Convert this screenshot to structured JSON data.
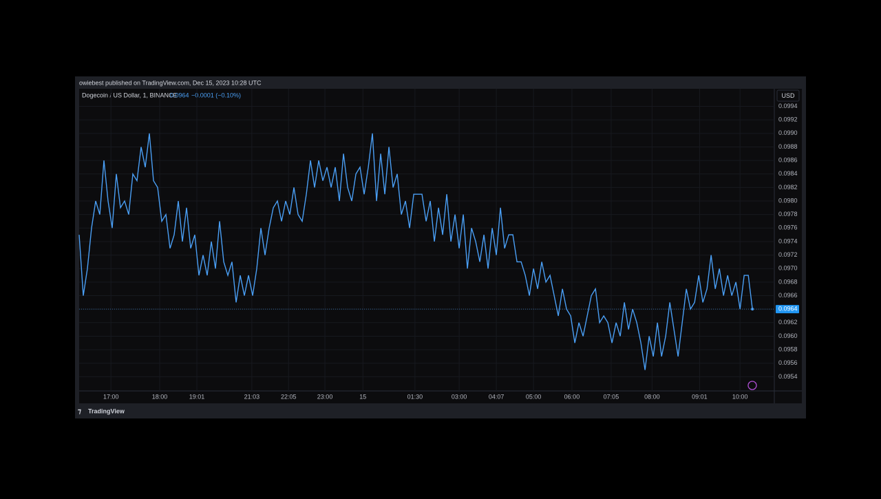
{
  "header": "owiebest published on TradingView.com, Dec 15, 2023 10:28 UTC",
  "footer": "TradingView",
  "chart_data": {
    "type": "line",
    "title": "Dogecoin / US Dollar, 1, BINANCE",
    "change": "−0.0001 (−0.10%)",
    "currency": "USD",
    "color": "#4a9ff5",
    "grid": true,
    "values": [
      0.0975,
      0.0966,
      0.097,
      0.0976,
      0.098,
      0.0978,
      0.0986,
      0.098,
      0.0976,
      0.0984,
      0.0979,
      0.098,
      0.0978,
      0.0984,
      0.0983,
      0.0988,
      0.0985,
      0.099,
      0.0983,
      0.0982,
      0.0977,
      0.0978,
      0.0973,
      0.0975,
      0.098,
      0.0974,
      0.0979,
      0.0973,
      0.0975,
      0.0969,
      0.0972,
      0.0969,
      0.0974,
      0.097,
      0.0977,
      0.0971,
      0.0969,
      0.0971,
      0.0965,
      0.0969,
      0.0966,
      0.0969,
      0.0966,
      0.097,
      0.0976,
      0.0972,
      0.0976,
      0.0979,
      0.098,
      0.0977,
      0.098,
      0.0978,
      0.0982,
      0.0978,
      0.0977,
      0.0981,
      0.0986,
      0.0982,
      0.0986,
      0.0983,
      0.0985,
      0.0982,
      0.0985,
      0.098,
      0.0987,
      0.0982,
      0.098,
      0.0984,
      0.0985,
      0.0981,
      0.0985,
      0.099,
      0.098,
      0.0987,
      0.0981,
      0.0988,
      0.0982,
      0.0984,
      0.0978,
      0.098,
      0.0976,
      0.0981,
      0.0981,
      0.0981,
      0.0977,
      0.098,
      0.0974,
      0.0979,
      0.0975,
      0.0981,
      0.0974,
      0.0978,
      0.0973,
      0.0978,
      0.097,
      0.0976,
      0.0974,
      0.0971,
      0.0975,
      0.097,
      0.0976,
      0.0972,
      0.0979,
      0.0973,
      0.0975,
      0.0975,
      0.0971,
      0.0971,
      0.0969,
      0.0966,
      0.097,
      0.0967,
      0.0971,
      0.0968,
      0.0969,
      0.0966,
      0.0963,
      0.0967,
      0.0964,
      0.0963,
      0.0959,
      0.0962,
      0.096,
      0.0963,
      0.0966,
      0.0967,
      0.0962,
      0.0963,
      0.0962,
      0.0959,
      0.0962,
      0.096,
      0.0965,
      0.0961,
      0.0964,
      0.0962,
      0.0959,
      0.0955,
      0.096,
      0.0957,
      0.0962,
      0.0957,
      0.096,
      0.0965,
      0.0961,
      0.0957,
      0.0962,
      0.0967,
      0.0964,
      0.0965,
      0.0969,
      0.0965,
      0.0967,
      0.0972,
      0.0967,
      0.097,
      0.0966,
      0.0969,
      0.0966,
      0.0968,
      0.0964,
      0.0969,
      0.0969,
      0.0964
    ],
    "xlim": [
      0,
      168.3
    ],
    "xticks": [
      {
        "value": 7.7,
        "label": "17:00"
      },
      {
        "value": 19.5,
        "label": "18:00"
      },
      {
        "value": 28.5,
        "label": "19:01"
      },
      {
        "value": 41.8,
        "label": "21:03"
      },
      {
        "value": 50.7,
        "label": "22:05"
      },
      {
        "value": 59.5,
        "label": "23:00"
      },
      {
        "value": 68.7,
        "label": "15"
      },
      {
        "value": 81.3,
        "label": "01:30"
      },
      {
        "value": 92,
        "label": "03:00"
      },
      {
        "value": 101,
        "label": "04:07"
      },
      {
        "value": 110,
        "label": "05:00"
      },
      {
        "value": 119.3,
        "label": "06:00"
      },
      {
        "value": 128.8,
        "label": "07:05"
      },
      {
        "value": 138.7,
        "label": "08:00"
      },
      {
        "value": 150.2,
        "label": "09:01"
      },
      {
        "value": 160,
        "label": "10:00"
      }
    ],
    "ylim": [
      0.09519,
      0.09966
    ],
    "yticks": [
      0.0954,
      0.0956,
      0.0958,
      {
        "value": 0.096,
        "label": "0.0960"
      },
      0.0962,
      0.0964,
      0.0966,
      0.0968,
      {
        "value": 0.097,
        "label": "0.0970"
      },
      0.0972,
      0.0974,
      0.0976,
      0.0978,
      {
        "value": 0.098,
        "label": "0.0980"
      },
      0.0982,
      0.0984,
      0.0986,
      0.0988,
      {
        "value": 0.099,
        "label": "0.0990"
      },
      0.0992,
      0.0994
    ]
  }
}
